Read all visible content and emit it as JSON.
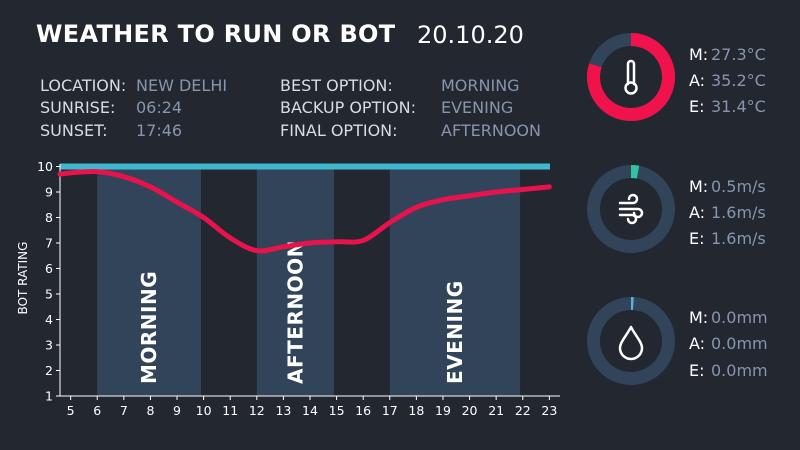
{
  "header": {
    "title": "WEATHER TO RUN OR BOT",
    "date": "20.10.20"
  },
  "info": {
    "location_label": "LOCATION:",
    "location": "NEW DELHI",
    "sunrise_label": "SUNRISE:",
    "sunrise": "06:24",
    "sunset_label": "SUNSET:",
    "sunset": "17:46",
    "best_label": "BEST OPTION:",
    "best": "MORNING",
    "backup_label": "BACKUP OPTION:",
    "backup": "EVENING",
    "final_label": "FINAL OPTION:",
    "final": "AFTERNOON"
  },
  "chart_data": {
    "type": "line",
    "ylabel": "BOT RATING",
    "xlim": [
      4.6,
      23.4
    ],
    "ylim": [
      1,
      10
    ],
    "x_ticks": [
      5,
      6,
      7,
      8,
      9,
      10,
      11,
      12,
      13,
      14,
      15,
      16,
      17,
      18,
      19,
      20,
      21,
      22,
      23
    ],
    "y_ticks": [
      1,
      2,
      3,
      4,
      5,
      6,
      7,
      8,
      9,
      10
    ],
    "reference_line": {
      "y": 10,
      "color": "#3fb8cf"
    },
    "bands": [
      {
        "label": "MORNING",
        "x0": 6,
        "x1": 9.9
      },
      {
        "label": "AFTERNOON",
        "x0": 12,
        "x1": 14.9
      },
      {
        "label": "EVENING",
        "x0": 17,
        "x1": 21.9
      }
    ],
    "series": [
      {
        "color": "#e8124c",
        "x": [
          4.6,
          5,
          6,
          7,
          8,
          9,
          10,
          11,
          12,
          13,
          14,
          15,
          16,
          17,
          18,
          19,
          20,
          21,
          22,
          23
        ],
        "y": [
          9.7,
          9.75,
          9.8,
          9.6,
          9.2,
          8.6,
          8.0,
          7.2,
          6.7,
          6.85,
          7.0,
          7.05,
          7.1,
          7.8,
          8.4,
          8.7,
          8.85,
          9.0,
          9.1,
          9.2
        ]
      }
    ]
  },
  "gauges": [
    {
      "icon": "thermometer-icon",
      "fill": 0.8,
      "color": "#f0124a",
      "stats": [
        {
          "key": "M:",
          "value": "27.3°C"
        },
        {
          "key": "A:",
          "value": "35.2°C"
        },
        {
          "key": "E:",
          "value": "31.4°C"
        }
      ]
    },
    {
      "icon": "wind-icon",
      "fill": 0.03,
      "color": "#2ec4a2",
      "stats": [
        {
          "key": "M:",
          "value": "0.5m/s"
        },
        {
          "key": "A:",
          "value": "1.6m/s"
        },
        {
          "key": "E:",
          "value": "1.6m/s"
        }
      ]
    },
    {
      "icon": "rain-drop-icon",
      "fill": 0.01,
      "color": "#5ab0e0",
      "stats": [
        {
          "key": "M:",
          "value": "0.0mm"
        },
        {
          "key": "A:",
          "value": "0.0mm"
        },
        {
          "key": "E:",
          "value": "0.0mm"
        }
      ]
    }
  ],
  "colors": {
    "background": "#222730",
    "band": "#31445a",
    "track": "#31445a",
    "muted_text": "#8796ad"
  }
}
